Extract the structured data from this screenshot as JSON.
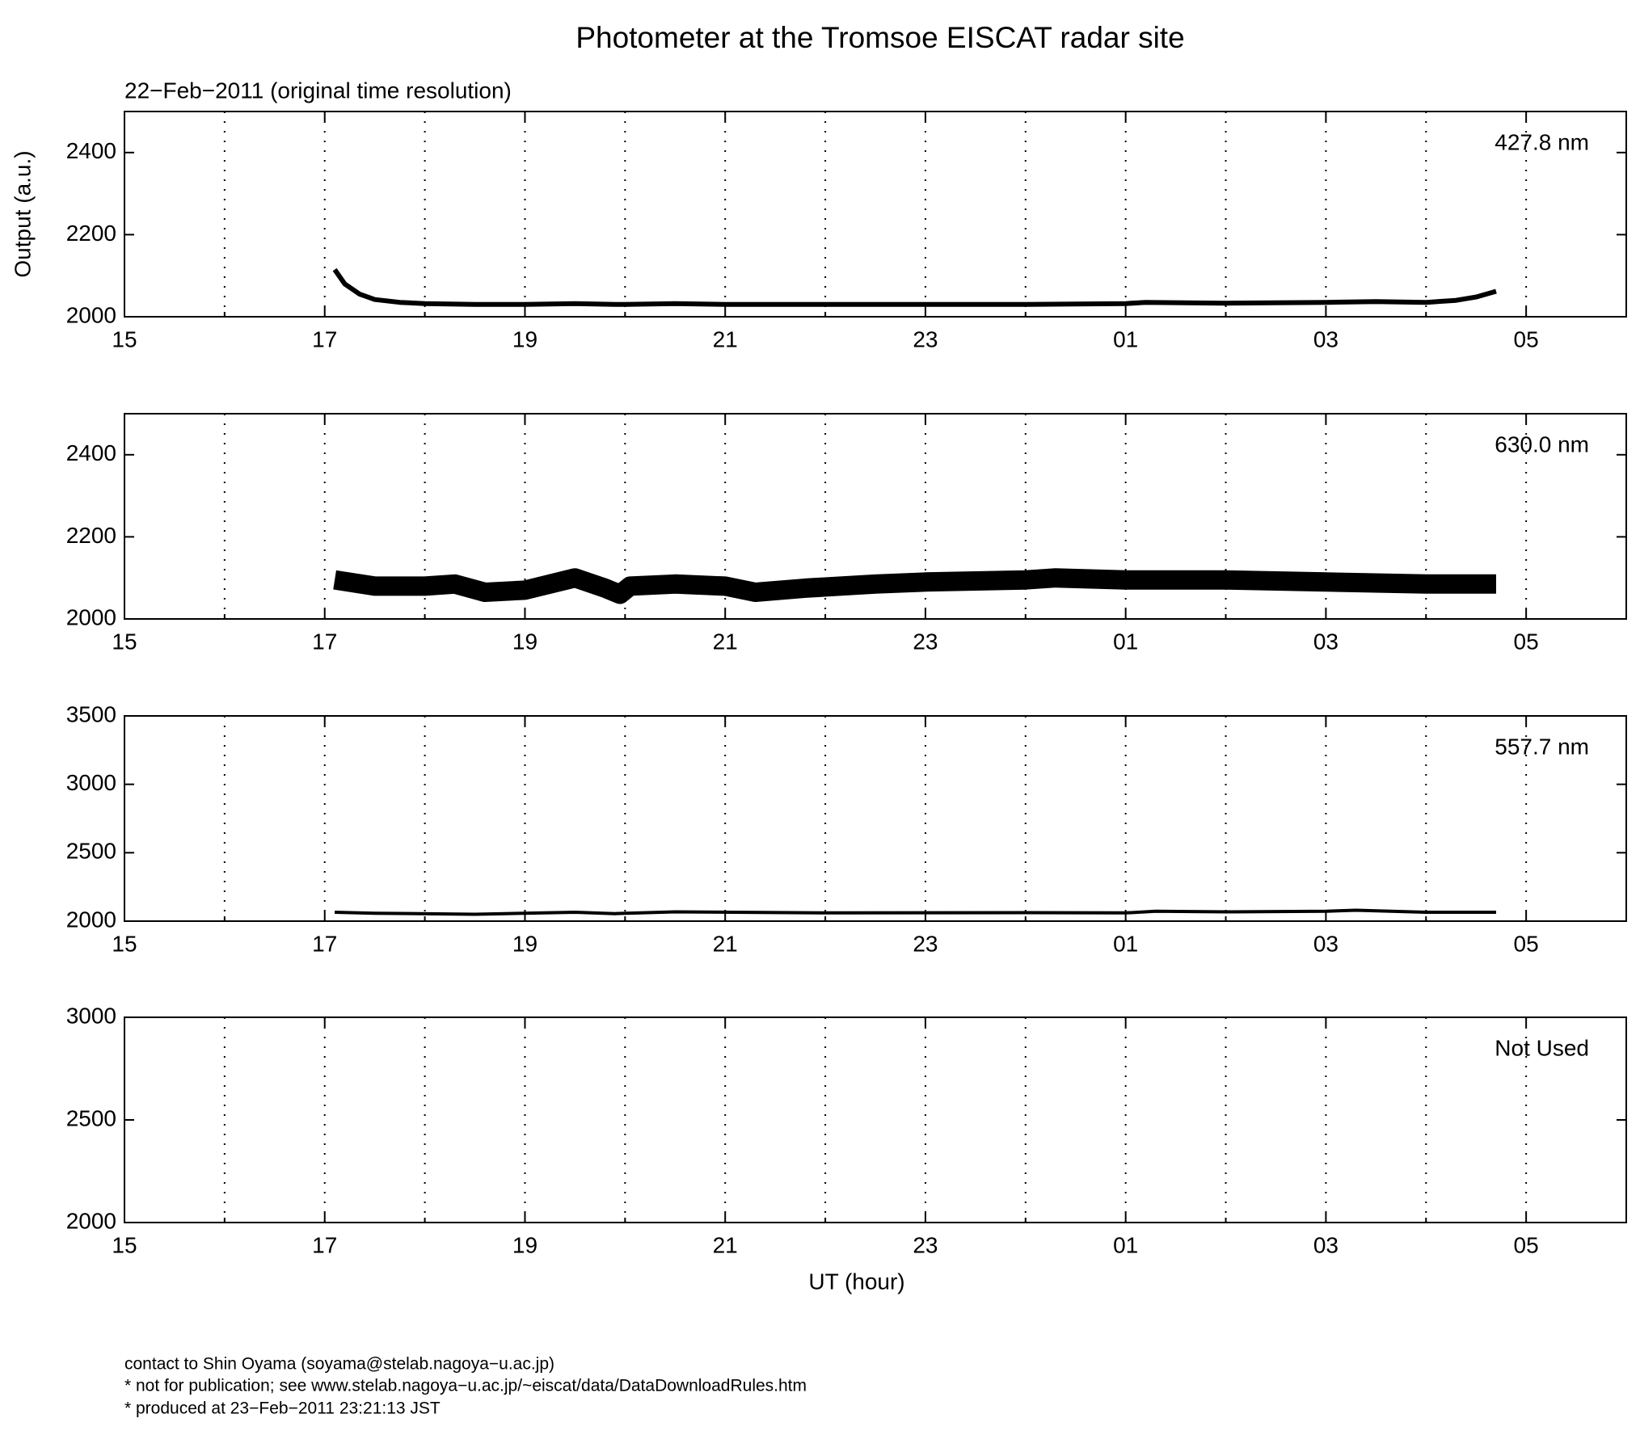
{
  "title": "Photometer at the Tromsoe EISCAT radar site",
  "subtitle": "22−Feb−2011 (original time resolution)",
  "footer": [
    "contact to Shin Oyama (soyama@stelab.nagoya−u.ac.jp)",
    "* not for publication; see www.stelab.nagoya−u.ac.jp/~eiscat/data/DataDownloadRules.htm",
    "* produced at 23−Feb−2011 23:21:13 JST"
  ],
  "chart_data": [
    {
      "type": "line",
      "ylabel": "Output (a.u.)",
      "x": [
        17.1,
        17.2,
        17.35,
        17.5,
        17.75,
        18,
        18.5,
        19,
        19.5,
        19.9,
        20,
        20.5,
        21,
        22,
        23,
        24,
        25,
        25.2,
        26,
        27,
        27.5,
        28,
        28.3,
        28.5,
        28.7
      ],
      "series": [
        {
          "name": "427.8 nm",
          "color": "#000000",
          "linewidth": 6,
          "values": [
            2115,
            2080,
            2055,
            2042,
            2035,
            2032,
            2030,
            2030,
            2032,
            2030,
            2030,
            2032,
            2030,
            2030,
            2030,
            2030,
            2032,
            2035,
            2033,
            2035,
            2037,
            2035,
            2040,
            2048,
            2062
          ]
        }
      ],
      "xlim": [
        15,
        30
      ],
      "xticks": [
        15,
        17,
        19,
        21,
        23,
        {
          "value": 25,
          "label": "01"
        },
        {
          "value": 27,
          "label": "03"
        },
        {
          "value": 29,
          "label": "05"
        }
      ],
      "minor_xticks": [
        16,
        18,
        20,
        22,
        24,
        26,
        28
      ],
      "ylim": [
        2000,
        2500
      ],
      "yticks": [
        2000,
        2200,
        2400
      ],
      "grid": true
    },
    {
      "type": "line",
      "x": [
        17.1,
        17.5,
        18,
        18.3,
        18.6,
        19,
        19.5,
        19.8,
        19.95,
        20.05,
        20.5,
        21,
        21.3,
        21.8,
        22.5,
        23,
        24,
        24.3,
        25,
        26,
        27,
        28,
        28.7
      ],
      "series": [
        {
          "name": "630.0 nm",
          "color": "#000000",
          "linewidth": 24,
          "values": [
            2095,
            2080,
            2080,
            2085,
            2065,
            2070,
            2100,
            2075,
            2060,
            2080,
            2085,
            2080,
            2065,
            2075,
            2085,
            2090,
            2095,
            2100,
            2095,
            2095,
            2090,
            2085,
            2085
          ]
        }
      ],
      "xlim": [
        15,
        30
      ],
      "xticks": [
        15,
        17,
        19,
        21,
        23,
        {
          "value": 25,
          "label": "01"
        },
        {
          "value": 27,
          "label": "03"
        },
        {
          "value": 29,
          "label": "05"
        }
      ],
      "minor_xticks": [
        16,
        18,
        20,
        22,
        24,
        26,
        28
      ],
      "ylim": [
        2000,
        2500
      ],
      "yticks": [
        2000,
        2200,
        2400
      ],
      "grid": true
    },
    {
      "type": "line",
      "x": [
        17.1,
        17.5,
        18.5,
        19.5,
        19.9,
        20.5,
        22,
        24,
        25,
        25.3,
        26,
        27,
        27.3,
        28,
        28.7
      ],
      "series": [
        {
          "name": "557.7 nm",
          "color": "#000000",
          "linewidth": 4,
          "values": [
            2065,
            2058,
            2050,
            2065,
            2055,
            2068,
            2060,
            2062,
            2060,
            2072,
            2068,
            2072,
            2080,
            2065,
            2065
          ]
        }
      ],
      "xlim": [
        15,
        30
      ],
      "xticks": [
        15,
        17,
        19,
        21,
        23,
        {
          "value": 25,
          "label": "01"
        },
        {
          "value": 27,
          "label": "03"
        },
        {
          "value": 29,
          "label": "05"
        }
      ],
      "minor_xticks": [
        16,
        18,
        20,
        22,
        24,
        26,
        28
      ],
      "ylim": [
        2000,
        3500
      ],
      "yticks": [
        2000,
        2500,
        3000,
        3500
      ],
      "grid": true
    },
    {
      "type": "line",
      "annotation": "Not Used",
      "xlabel": "UT (hour)",
      "series": [],
      "xlim": [
        15,
        30
      ],
      "xticks": [
        15,
        17,
        19,
        21,
        23,
        {
          "value": 25,
          "label": "01"
        },
        {
          "value": 27,
          "label": "03"
        },
        {
          "value": 29,
          "label": "05"
        }
      ],
      "minor_xticks": [
        16,
        18,
        20,
        22,
        24,
        26,
        28
      ],
      "ylim": [
        2000,
        3000
      ],
      "yticks": [
        2000,
        2500,
        3000
      ],
      "grid": true
    }
  ]
}
